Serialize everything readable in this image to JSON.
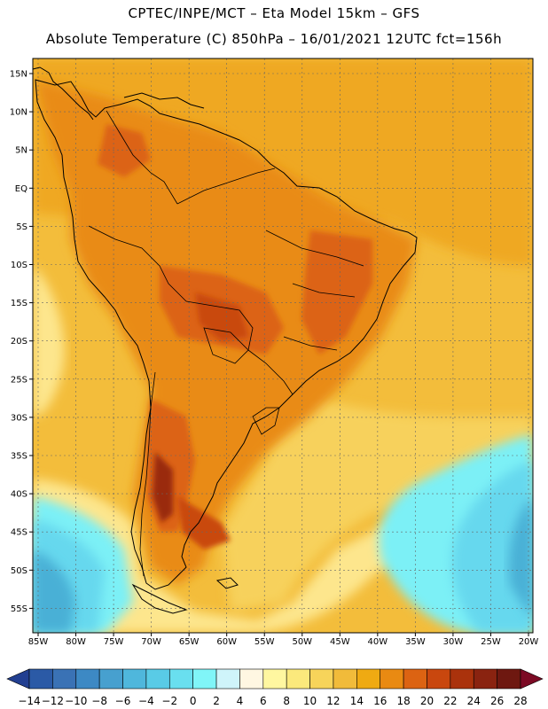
{
  "header": {
    "line1": "CPTEC/INPE/MCT –  Eta Model 15km – GFS",
    "line2": "Absolute Temperature (C) 850hPa – 16/01/2021 12UTC fct=156h"
  },
  "axes": {
    "lat_labels": [
      "15N",
      "10N",
      "5N",
      "EQ",
      "5S",
      "10S",
      "15S",
      "20S",
      "25S",
      "30S",
      "35S",
      "40S",
      "45S",
      "50S",
      "55S"
    ],
    "lon_labels": [
      "85W",
      "80W",
      "75W",
      "70W",
      "65W",
      "60W",
      "55W",
      "50W",
      "45W",
      "40W",
      "35W",
      "30W",
      "25W",
      "20W"
    ]
  },
  "colorbar": {
    "labels": [
      "-14",
      "-12",
      "-10",
      "-8",
      "-6",
      "-4",
      "-2",
      "0",
      "2",
      "4",
      "6",
      "8",
      "10",
      "12",
      "14",
      "16",
      "18",
      "20",
      "22",
      "24",
      "26",
      "28"
    ],
    "colors": [
      "#223f91",
      "#2b5aa6",
      "#3a72b5",
      "#3d89c4",
      "#47a0cf",
      "#4fb7dc",
      "#59cbe6",
      "#69dfef",
      "#80f5f8",
      "#cff4fa",
      "#fff7e2",
      "#fff7a0",
      "#fbe97c",
      "#f7d45a",
      "#f1bb3a",
      "#efaa12",
      "#e98a12",
      "#dc6312",
      "#c9470e",
      "#aa320c",
      "#8a2310",
      "#6e1810",
      "#7c0a24"
    ]
  },
  "map": {
    "ocean_colors": {
      "warm_ocean": "#efa820",
      "mid_ocean": "#f3bd3b",
      "light_ocean": "#f7d15c",
      "pale_ocean": "#fde68d",
      "cold_ocean": "#66d8ee",
      "cyan_ocean": "#7cf0f6",
      "deep_cold": "#48b0d6"
    },
    "land_colors": {
      "land_warm": "#e98b16",
      "land_hot": "#dc6412",
      "land_hotter": "#c9480e",
      "land_hottest": "#9a2c0c"
    }
  }
}
